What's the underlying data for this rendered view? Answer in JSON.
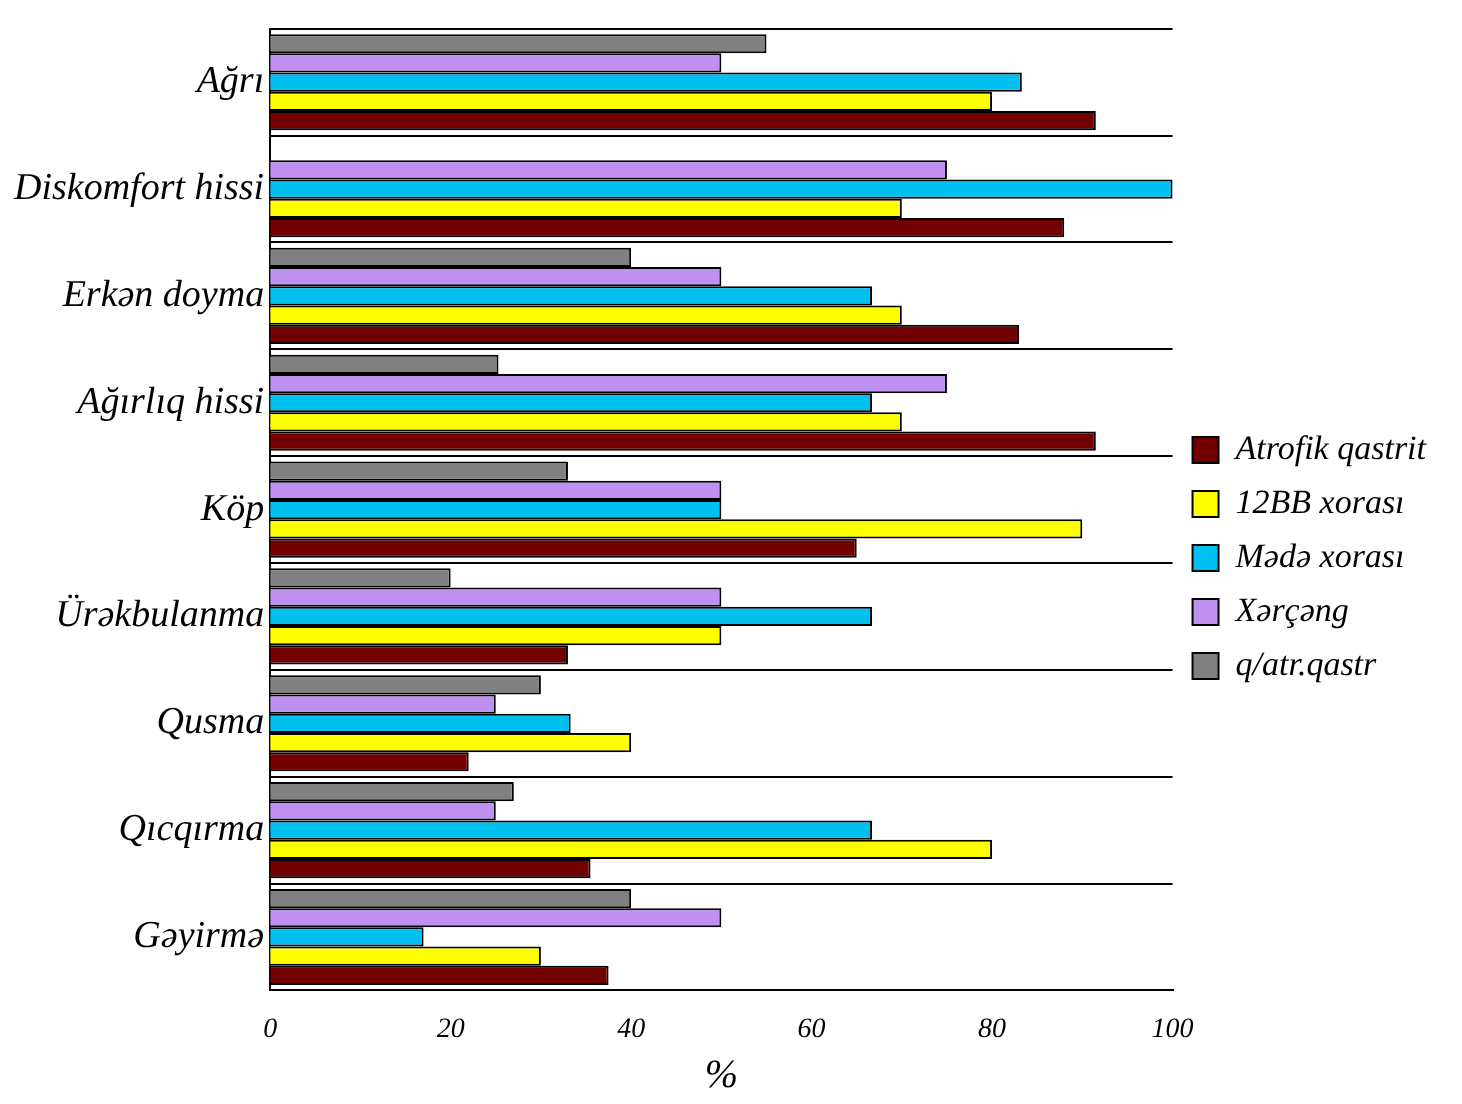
{
  "chart_data": {
    "type": "bar",
    "orientation": "horizontal",
    "xlabel": "%",
    "categories": [
      "Ağrı",
      "Diskomfort hissi",
      "Erkən doyma",
      "Ağırlıq hissi",
      "Köp",
      "Ürəkbulanma",
      "Qusma",
      "Qıcqırma",
      "Gəyirmə"
    ],
    "series": [
      {
        "name": "Atrofik qastrit",
        "color": "#720000",
        "values": [
          91.5,
          88,
          83,
          91.5,
          65,
          33,
          22,
          35.5,
          37.5
        ]
      },
      {
        "name": "12BB xorası",
        "color": "#ffff00",
        "values": [
          80,
          70,
          70,
          70,
          90,
          50,
          40,
          80,
          30
        ]
      },
      {
        "name": "Mədə xorası",
        "color": "#00c0f0",
        "values": [
          83.3,
          100,
          66.7,
          66.7,
          50,
          66.7,
          33.3,
          66.7,
          17
        ]
      },
      {
        "name": "Xərçəng",
        "color": "#c090f0",
        "values": [
          50,
          75,
          50,
          75,
          50,
          50,
          25,
          25,
          50
        ]
      },
      {
        "name": "q/atr.qastr",
        "color": "#808080",
        "values": [
          55,
          null,
          40,
          25.3,
          33,
          20,
          30,
          27,
          40
        ]
      }
    ],
    "xlim": [
      0,
      100
    ],
    "xticks": [
      0,
      20,
      40,
      60,
      80,
      100
    ],
    "grid": "y",
    "legend": "right"
  }
}
